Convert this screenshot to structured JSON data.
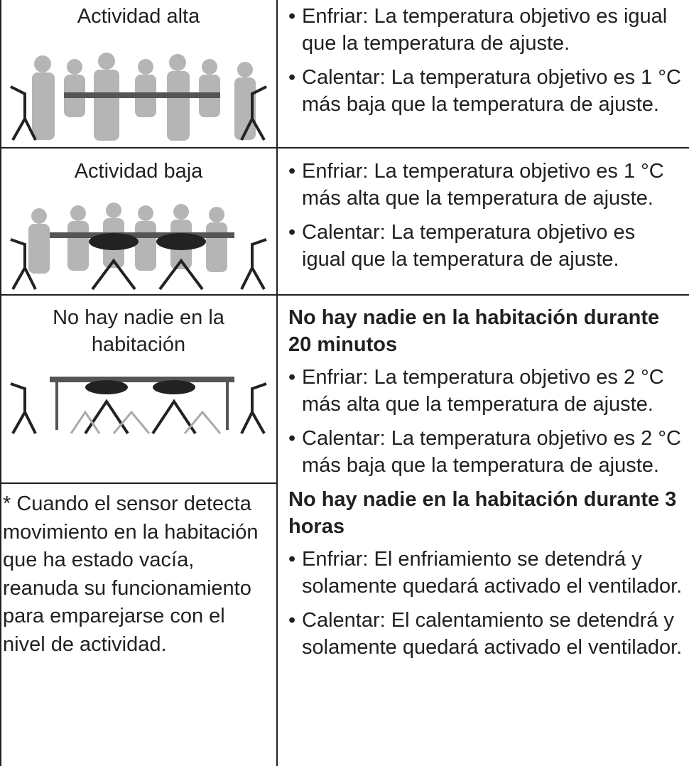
{
  "table": {
    "rows": [
      {
        "label": "Actividad alta",
        "items": [
          "Enfriar: La temperatura objetivo es igual que la temperatura de ajuste.",
          "Calentar: La temperatura objetivo es 1 °C más baja que la temperatura de ajuste."
        ]
      },
      {
        "label": "Actividad baja",
        "items": [
          "Enfriar: La temperatura objetivo es 1 °C más alta que la temperatura de ajuste.",
          "Calentar: La temperatura objetivo es igual que la temperatura de ajuste."
        ]
      },
      {
        "label": "No hay nadie en la habitación",
        "sections": [
          {
            "heading": "No hay nadie en la habitación durante 20 minutos",
            "items": [
              "Enfriar: La temperatura objetivo es 2 °C más alta que la temperatura de ajuste.",
              "Calentar: La temperatura objetivo es 2 °C más baja que la temperatura de ajuste."
            ]
          },
          {
            "heading": "No hay nadie en la habitación durante 3 horas",
            "items": [
              "Enfriar: El enfriamiento se detendrá y solamente quedará activado el ventilador.",
              "Calentar: El calentamiento se detendrá y solamente quedará activado el ventilador."
            ]
          }
        ]
      }
    ],
    "note": "* Cuando el sensor detecta movimiento en la habitación que ha estado vacía, reanuda su funcionamiento para emparejarse con el nivel de actividad."
  }
}
